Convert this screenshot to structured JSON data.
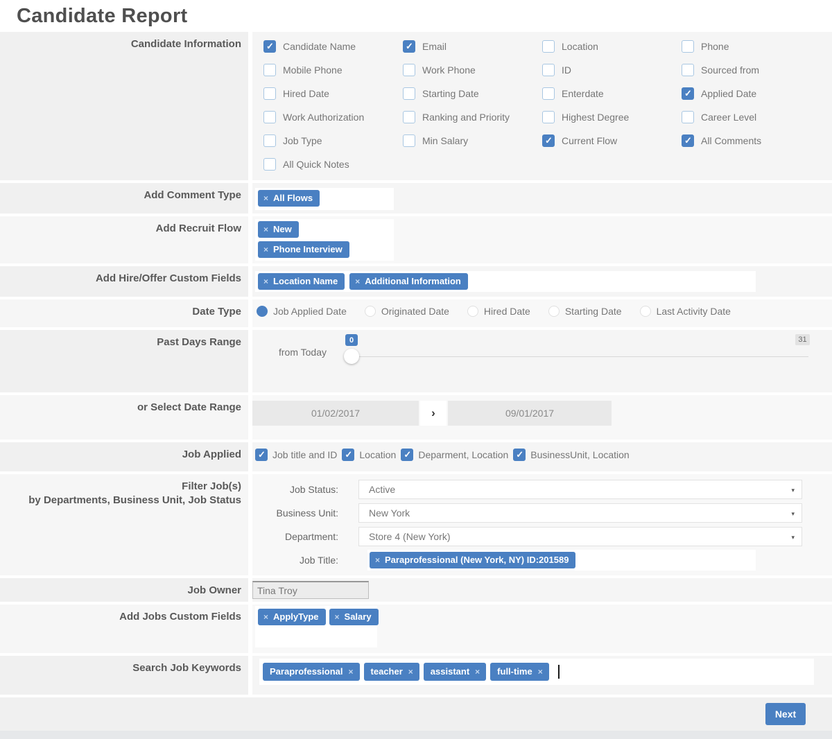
{
  "header": {
    "title": "Candidate Report"
  },
  "icons": {
    "close": "×",
    "caret": "▾",
    "chevron": "›",
    "check": "✓"
  },
  "colors": {
    "accent": "#4a80c2",
    "checkbox_border": "#a9c7e2",
    "row_bg": "#f0f0f0",
    "tag_bg": "#4a80c2"
  },
  "candidate_information": {
    "label": "Candidate Information",
    "columns": [
      [
        {
          "label": "Candidate Name",
          "checked": true
        },
        {
          "label": "Mobile Phone",
          "checked": false
        },
        {
          "label": "Hired Date",
          "checked": false
        },
        {
          "label": "Work Authorization",
          "checked": false
        },
        {
          "label": "Job Type",
          "checked": false
        },
        {
          "label": "All Quick Notes",
          "checked": false
        }
      ],
      [
        {
          "label": "Email",
          "checked": true
        },
        {
          "label": "Work Phone",
          "checked": false
        },
        {
          "label": "Starting Date",
          "checked": false
        },
        {
          "label": "Ranking and Priority",
          "checked": false
        },
        {
          "label": "Min Salary",
          "checked": false
        }
      ],
      [
        {
          "label": "Location",
          "checked": false
        },
        {
          "label": "ID",
          "checked": false
        },
        {
          "label": "Enterdate",
          "checked": false
        },
        {
          "label": "Highest Degree",
          "checked": false
        },
        {
          "label": "Current Flow",
          "checked": true
        }
      ],
      [
        {
          "label": "Phone",
          "checked": false
        },
        {
          "label": "Sourced from",
          "checked": false
        },
        {
          "label": "Applied Date",
          "checked": true
        },
        {
          "label": "Career Level",
          "checked": false
        },
        {
          "label": "All Comments",
          "checked": true
        }
      ]
    ]
  },
  "add_comment_type": {
    "label": "Add Comment Type",
    "tags": [
      "All Flows"
    ]
  },
  "add_recruit_flow": {
    "label": "Add Recruit Flow",
    "tags": [
      "New",
      "Phone Interview"
    ]
  },
  "add_hire_offer": {
    "label": "Add Hire/Offer Custom Fields",
    "tags": [
      "Location Name",
      "Additional Information"
    ]
  },
  "date_type": {
    "label": "Date Type",
    "options": [
      {
        "label": "Job Applied Date",
        "selected": true
      },
      {
        "label": "Originated Date",
        "selected": false
      },
      {
        "label": "Hired Date",
        "selected": false
      },
      {
        "label": "Starting Date",
        "selected": false
      },
      {
        "label": "Last Activity Date",
        "selected": false
      }
    ]
  },
  "past_days_range": {
    "label": "Past Days Range",
    "from_label": "from Today",
    "value": "0",
    "max": "31"
  },
  "date_range": {
    "label": "or Select Date Range",
    "start_date": "01/02/2017",
    "end_date": "09/01/2017"
  },
  "job_applied": {
    "label": "Job Applied",
    "options": [
      {
        "label": "Job title and ID",
        "checked": true
      },
      {
        "label": "Location",
        "checked": true
      },
      {
        "label": "Deparment, Location",
        "checked": true
      },
      {
        "label": "BusinessUnit, Location",
        "checked": true
      }
    ]
  },
  "filter_jobs": {
    "label_line1": "Filter Job(s)",
    "label_line2": "by Departments, Business Unit, Job Status",
    "fields": [
      {
        "label": "Job Status:",
        "value": "Active"
      },
      {
        "label": "Business Unit:",
        "value": "New York"
      },
      {
        "label": "Department:",
        "value": "Store 4 (New York)"
      }
    ],
    "job_title_label": "Job Title:",
    "job_title_tag": "Paraprofessional (New York, NY) ID:201589"
  },
  "job_owner": {
    "label": "Job Owner",
    "value": "Tina Troy"
  },
  "add_jobs_custom_fields": {
    "label": "Add Jobs Custom Fields",
    "tags": [
      "ApplyType",
      "Salary"
    ]
  },
  "search_job_keywords": {
    "label": "Search Job Keywords",
    "tags": [
      "Paraprofessional",
      "teacher",
      "assistant",
      "full-time"
    ]
  },
  "actions": {
    "next": "Next"
  }
}
